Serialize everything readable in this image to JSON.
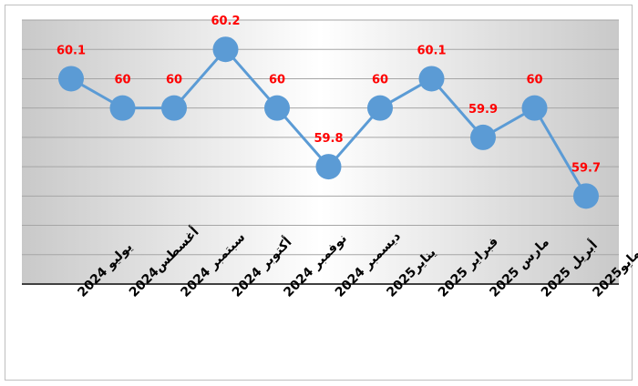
{
  "chart_data": {
    "type": "line",
    "title": "",
    "xlabel": "",
    "ylabel": "",
    "categories": [
      "يوليو 2024",
      "أغسطس2024",
      "سبتمبر 2024",
      "أكتوبر 2024",
      "نوفمبر 2024",
      "ديسمبر 2024",
      "يناير2025",
      "فبراير 2025",
      "مارس 2025",
      "أبريل 2025",
      "مايو2025"
    ],
    "values": [
      60.1,
      60,
      60,
      60.2,
      60,
      59.8,
      60,
      60.1,
      59.9,
      60,
      59.7
    ],
    "value_labels": [
      "60.1",
      "60",
      "60",
      "60.2",
      "60",
      "59.8",
      "60",
      "60.1",
      "59.9",
      "60",
      "59.7"
    ],
    "ylim": [
      59.4,
      60.3
    ],
    "grid": true,
    "y_ticks_shown": false,
    "legend": "none",
    "colors": {
      "line": "#5b9bd5",
      "marker": "#5b9bd5",
      "label": "#ff0000",
      "grid": "#a6a6a6",
      "axis": "#404040",
      "plot_bg_center": "#ffffff",
      "plot_bg_edge": "#c9c9c9",
      "category_text": "#000000"
    }
  }
}
